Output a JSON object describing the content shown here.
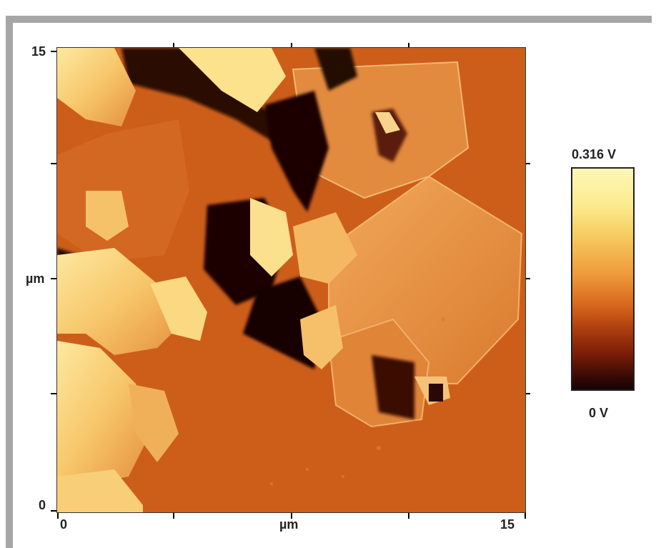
{
  "axes": {
    "y_top": "15",
    "y_mid": "µm",
    "y_bottom": "0",
    "x_left": "0",
    "x_mid": "µm",
    "x_right": "15"
  },
  "colorbar": {
    "max_label": "0.316 V",
    "min_label": "0 V",
    "colors": [
      "#fdf8b8",
      "#f6c75c",
      "#ee9a3a",
      "#d8661d",
      "#b0400f",
      "#7a1d08",
      "#150404"
    ]
  },
  "image": {
    "background_color": "#cd5e1a",
    "content": "afm-phase-map-with-layered-crystal-flakes"
  }
}
